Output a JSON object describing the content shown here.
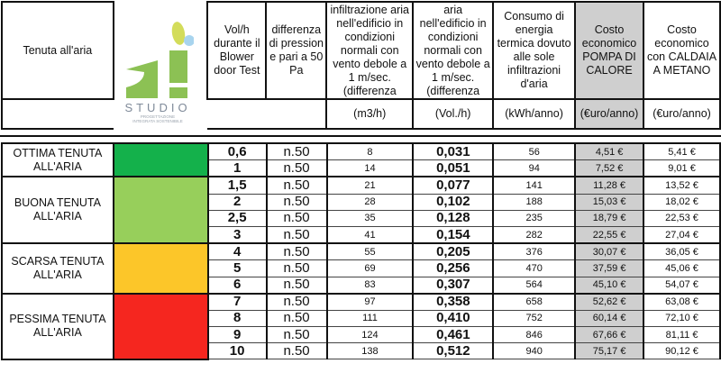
{
  "header": {
    "tenuta": "Tenuta all'aria",
    "logo": {
      "text": "STUDIO",
      "sub1": "PROGETTAZIONE",
      "sub2": "INTEGRATA SOSTENIBILE"
    },
    "vol_h": "Vol/h durante il Blower door Test",
    "pressione": "differenza di pression e pari a 50 Pa",
    "infiltrazione_m3h": "infiltrazione aria nell'edificio in condizioni normali con vento debole a 1 m/sec. (differenza",
    "infiltrazione_volh": "aria nell'edificio in condizioni normali con vento debole a 1 m/sec. (differenza",
    "consumo": "Consumo di energia termica dovuto alle sole infiltrazioni d'aria",
    "costo_pompa": "Costo economico POMPA DI CALORE",
    "costo_caldaia": "Costo economico con CALDAIA A METANO",
    "units": [
      "(m3/h)",
      "(Vol./h)",
      "(kWh/anno)",
      "(€uro/anno)",
      "(€uro/anno)"
    ]
  },
  "groups": [
    {
      "label": "OTTIMA TENUTA ALL'ARIA",
      "color": "#14b14b",
      "rows": [
        [
          "0,6",
          "n.50",
          "8",
          "0,031",
          "56",
          "4,51 €",
          "5,41 €"
        ],
        [
          "1",
          "n.50",
          "14",
          "0,051",
          "94",
          "7,52 €",
          "9,01 €"
        ]
      ]
    },
    {
      "label": "BUONA TENUTA ALL'ARIA",
      "color": "#97cf5b",
      "rows": [
        [
          "1,5",
          "n.50",
          "21",
          "0,077",
          "141",
          "11,28 €",
          "13,52 €"
        ],
        [
          "2",
          "n.50",
          "28",
          "0,102",
          "188",
          "15,03 €",
          "18,02 €"
        ],
        [
          "2,5",
          "n.50",
          "35",
          "0,128",
          "235",
          "18,79 €",
          "22,53 €"
        ],
        [
          "3",
          "n.50",
          "41",
          "0,154",
          "282",
          "22,55 €",
          "27,04 €"
        ]
      ]
    },
    {
      "label": "SCARSA TENUTA ALL'ARIA",
      "color": "#fcc629",
      "rows": [
        [
          "4",
          "n.50",
          "55",
          "0,205",
          "376",
          "30,07 €",
          "36,05 €"
        ],
        [
          "5",
          "n.50",
          "69",
          "0,256",
          "470",
          "37,59 €",
          "45,06 €"
        ],
        [
          "6",
          "n.50",
          "83",
          "0,307",
          "564",
          "45,10 €",
          "54,07 €"
        ]
      ]
    },
    {
      "label": "PESSIMA TENUTA ALL'ARIA",
      "color": "#f5261f",
      "rows": [
        [
          "7",
          "n.50",
          "97",
          "0,358",
          "658",
          "52,62 €",
          "63,08 €"
        ],
        [
          "8",
          "n.50",
          "111",
          "0,410",
          "752",
          "60,14 €",
          "72,10 €"
        ],
        [
          "9",
          "n.50",
          "124",
          "0,461",
          "846",
          "67,66 €",
          "81,11 €"
        ],
        [
          "10",
          "n.50",
          "138",
          "0,512",
          "940",
          "75,17 €",
          "90,12 €"
        ]
      ]
    }
  ]
}
